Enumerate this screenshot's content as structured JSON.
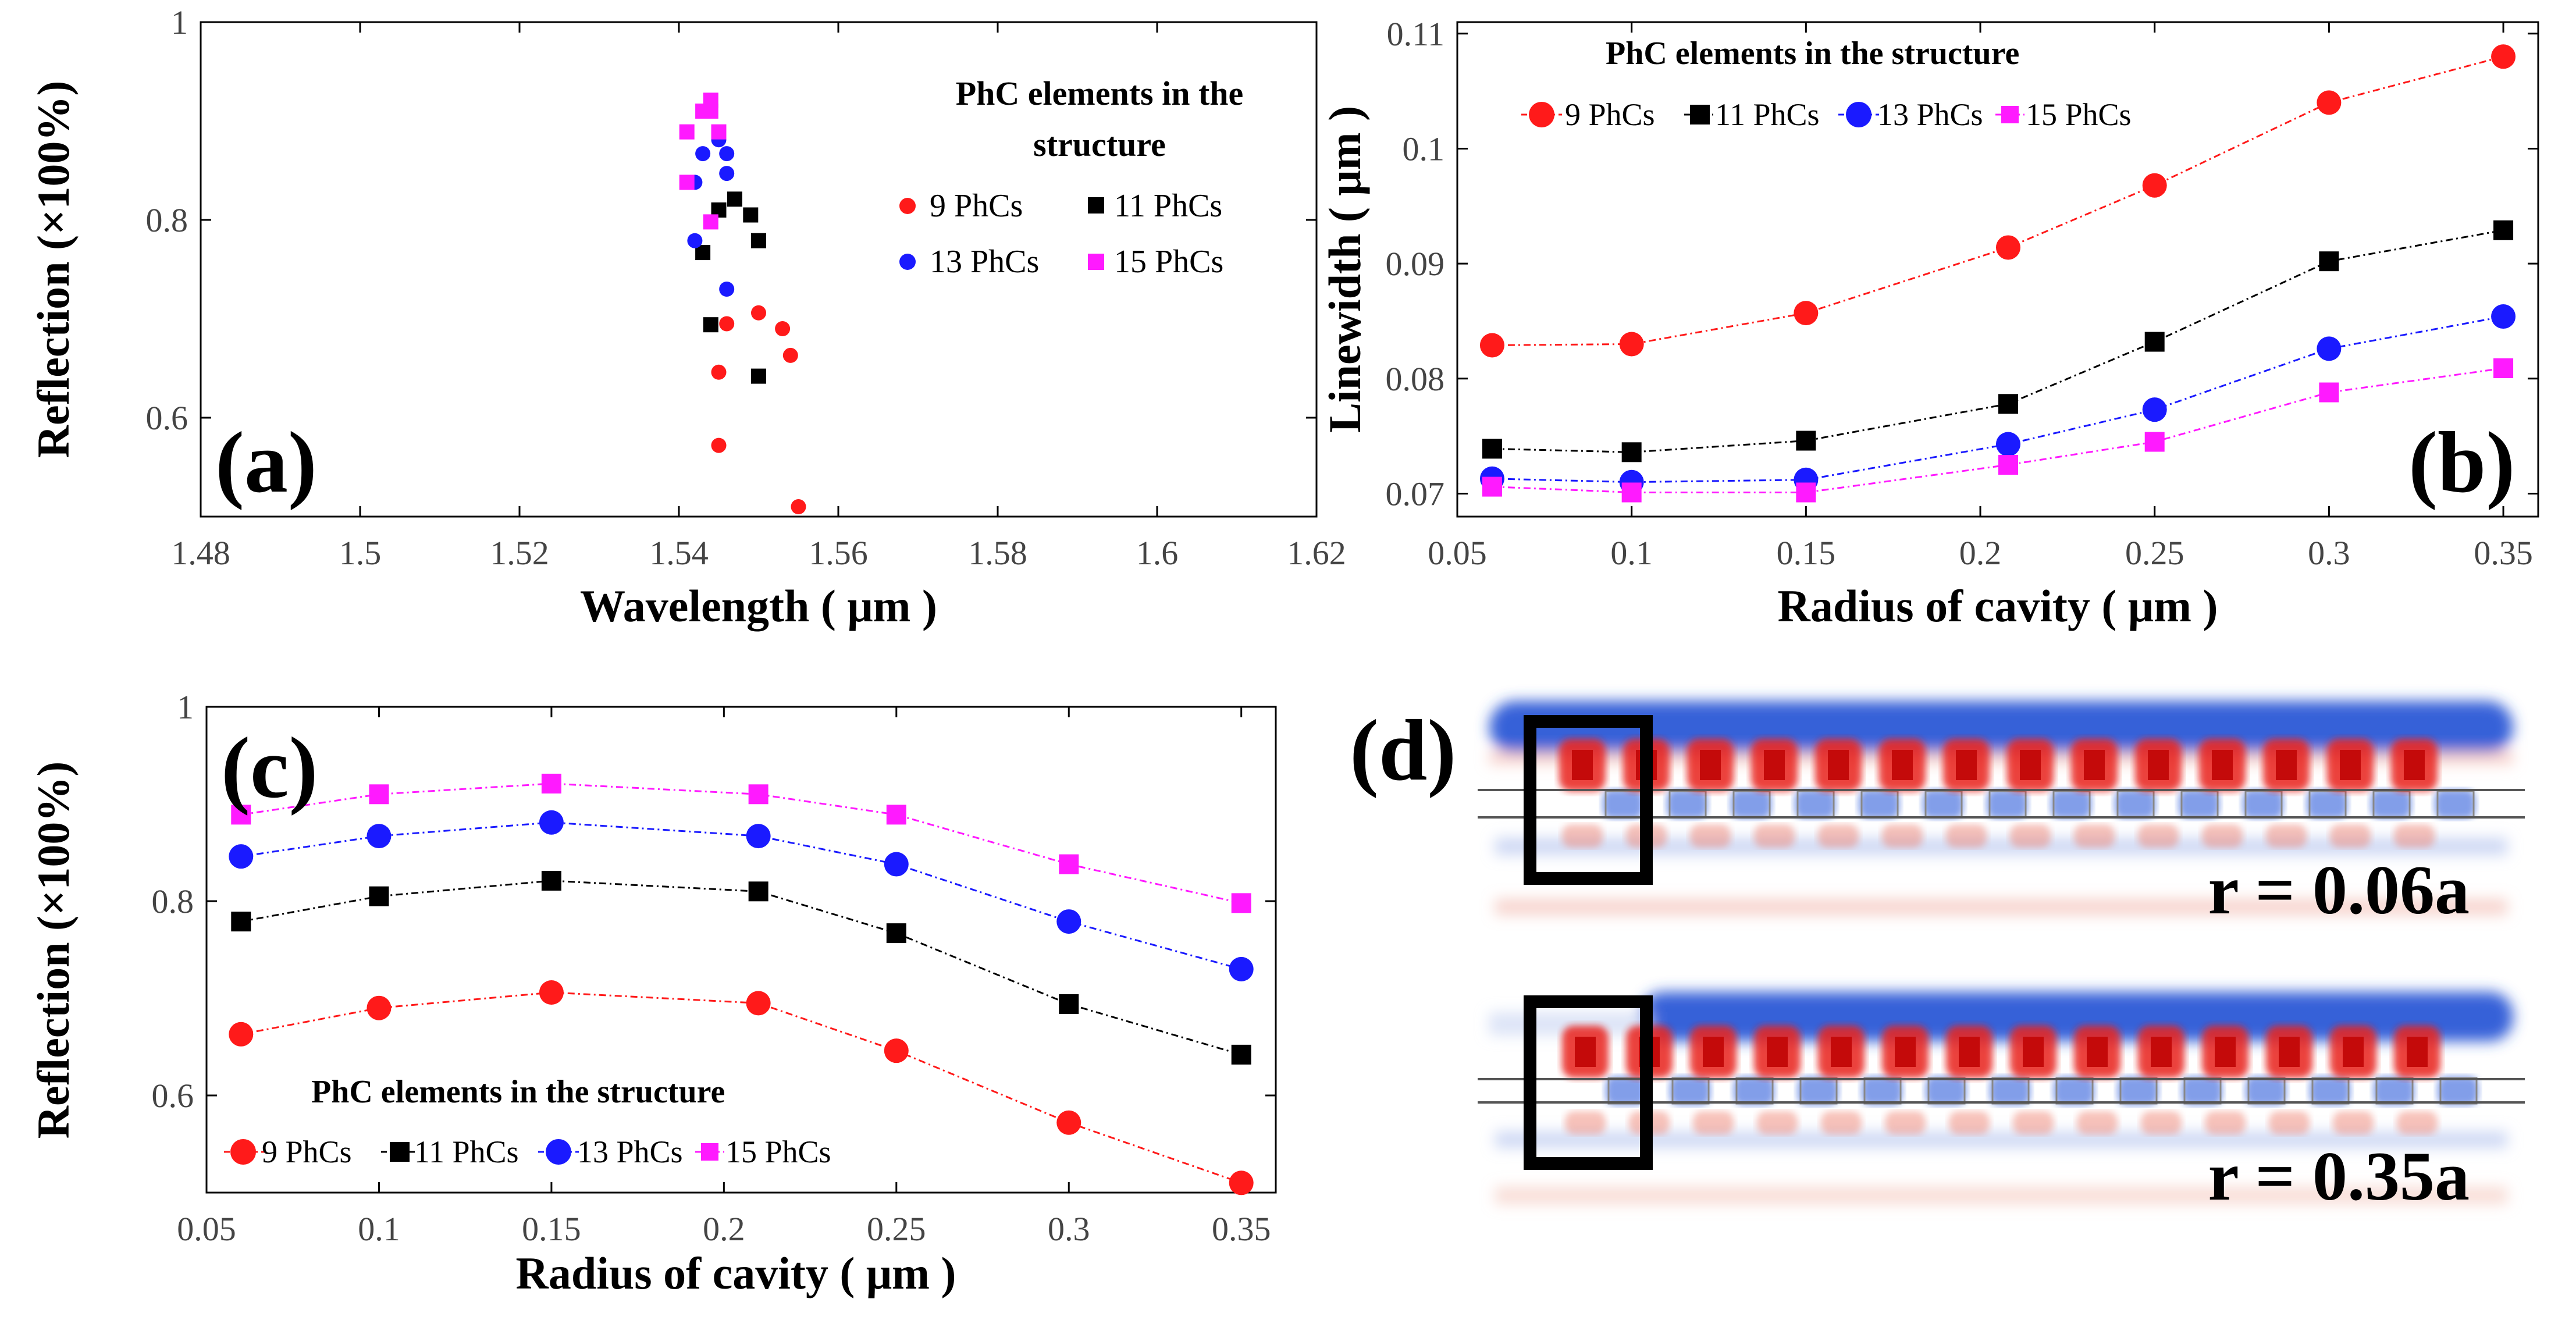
{
  "colors": {
    "red": "#ff1a1a",
    "black": "#000000",
    "blue": "#1a1aff",
    "magenta": "#ff1aff",
    "field_red": "#e8201e",
    "field_blue": "#1f4fd8"
  },
  "chart_data": [
    {
      "panel": "a",
      "panel_label": "(a)",
      "type": "scatter",
      "xlabel": "Wavelength ( μm )",
      "ylabel": "Reflection (×100%)",
      "xlim": [
        1.48,
        1.62
      ],
      "ylim": [
        0.5,
        1.0
      ],
      "xticks": [
        "1.48",
        "1.5",
        "1.52",
        "1.54",
        "1.56",
        "1.58",
        "1.6",
        "1.62"
      ],
      "yticks": [
        "0.6",
        "0.8",
        "1"
      ],
      "legend_title_line1": "PhC elements in the",
      "legend_title_line2": "structure",
      "series": [
        {
          "name": "9 PhCs",
          "marker": "circle",
          "color": "red",
          "points": [
            [
              1.545,
              0.572
            ],
            [
              1.545,
              0.646
            ],
            [
              1.546,
              0.695
            ],
            [
              1.55,
              0.706
            ],
            [
              1.553,
              0.69
            ],
            [
              1.554,
              0.663
            ],
            [
              1.555,
              0.51
            ]
          ]
        },
        {
          "name": "11 PhCs",
          "marker": "square",
          "color": "black",
          "points": [
            [
              1.543,
              0.767
            ],
            [
              1.544,
              0.694
            ],
            [
              1.545,
              0.81
            ],
            [
              1.547,
              0.821
            ],
            [
              1.549,
              0.805
            ],
            [
              1.55,
              0.779
            ],
            [
              1.55,
              0.642
            ]
          ]
        },
        {
          "name": "13 PhCs",
          "marker": "circle",
          "color": "blue",
          "points": [
            [
              1.542,
              0.779
            ],
            [
              1.542,
              0.838
            ],
            [
              1.543,
              0.867
            ],
            [
              1.545,
              0.881
            ],
            [
              1.546,
              0.867
            ],
            [
              1.546,
              0.847
            ],
            [
              1.546,
              0.73
            ]
          ]
        },
        {
          "name": "15 PhCs",
          "marker": "square",
          "color": "magenta",
          "points": [
            [
              1.541,
              0.838
            ],
            [
              1.541,
              0.889
            ],
            [
              1.543,
              0.91
            ],
            [
              1.544,
              0.921
            ],
            [
              1.544,
              0.91
            ],
            [
              1.545,
              0.889
            ],
            [
              1.544,
              0.798
            ]
          ]
        }
      ]
    },
    {
      "panel": "b",
      "panel_label": "(b)",
      "type": "line",
      "xlabel": "Radius of cavity ( μm )",
      "ylabel": "Linewidth ( μm )",
      "xlim": [
        0.05,
        0.36
      ],
      "ylim": [
        0.068,
        0.111
      ],
      "xticks": [
        "0.05",
        "0.1",
        "0.15",
        "0.2",
        "0.25",
        "0.3",
        "0.35"
      ],
      "yticks": [
        "0.07",
        "0.08",
        "0.09",
        "0.1",
        "0.11"
      ],
      "legend_title": "PhC elements in the structure",
      "x": [
        0.06,
        0.1,
        0.15,
        0.208,
        0.25,
        0.3,
        0.35
      ],
      "series": [
        {
          "name": "9 PhCs",
          "marker": "circle",
          "color": "red",
          "values": [
            0.0829,
            0.083,
            0.0857,
            0.0914,
            0.0968,
            0.104,
            0.108
          ]
        },
        {
          "name": "11 PhCs",
          "marker": "square",
          "color": "black",
          "values": [
            0.0739,
            0.0736,
            0.0746,
            0.0778,
            0.0832,
            0.0902,
            0.0929
          ]
        },
        {
          "name": "13 PhCs",
          "marker": "circle",
          "color": "blue",
          "values": [
            0.0713,
            0.071,
            0.0712,
            0.0743,
            0.0773,
            0.0826,
            0.0854
          ]
        },
        {
          "name": "15 PhCs",
          "marker": "square",
          "color": "magenta",
          "values": [
            0.0706,
            0.0701,
            0.0701,
            0.0725,
            0.0745,
            0.0788,
            0.0809
          ]
        }
      ]
    },
    {
      "panel": "c",
      "panel_label": "(c)",
      "type": "line",
      "xlabel": "Radius of cavity ( μm )",
      "ylabel": "Reflection (×100%)",
      "xlim": [
        0.05,
        0.36
      ],
      "ylim": [
        0.5,
        1.0
      ],
      "xticks": [
        "0.05",
        "0.1",
        "0.15",
        "0.2",
        "0.25",
        "0.3",
        "0.35"
      ],
      "yticks": [
        "0.6",
        "0.8",
        "1"
      ],
      "legend_title": "PhC elements in the structure",
      "x": [
        0.06,
        0.1,
        0.15,
        0.21,
        0.25,
        0.3,
        0.35
      ],
      "series": [
        {
          "name": "9 PhCs",
          "marker": "circle",
          "color": "red",
          "values": [
            0.663,
            0.69,
            0.706,
            0.695,
            0.646,
            0.572,
            0.51
          ]
        },
        {
          "name": "11 PhCs",
          "marker": "square",
          "color": "black",
          "values": [
            0.779,
            0.805,
            0.821,
            0.81,
            0.767,
            0.694,
            0.642
          ]
        },
        {
          "name": "13 PhCs",
          "marker": "circle",
          "color": "blue",
          "values": [
            0.846,
            0.867,
            0.881,
            0.867,
            0.838,
            0.779,
            0.73
          ]
        },
        {
          "name": "15 PhCs",
          "marker": "square",
          "color": "magenta",
          "values": [
            0.889,
            0.91,
            0.921,
            0.91,
            0.889,
            0.838,
            0.798
          ]
        }
      ]
    }
  ],
  "field_panel": {
    "panel_label": "(d)",
    "top_caption": "r = 0.06a",
    "bottom_caption": "r = 0.35a"
  }
}
